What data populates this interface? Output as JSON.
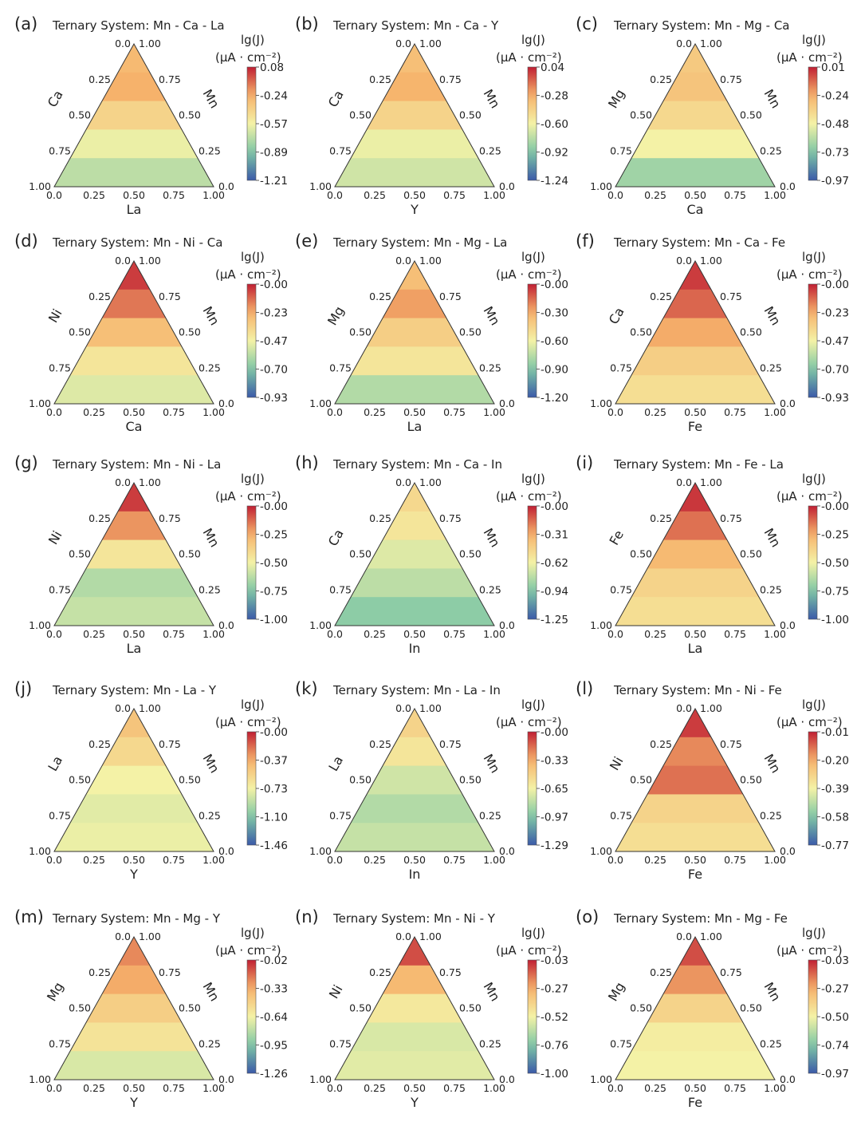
{
  "figure": {
    "colorbar_title_line1": "lg(J)",
    "colorbar_title_line2": "(μA · cm⁻²)",
    "colors": {
      "low": "#3b5aa8",
      "mid_low": "#7fc7a6",
      "mid": "#f4f2a6",
      "mid_high": "#f6b26b",
      "high": "#c01f33"
    }
  },
  "chart_data": [
    {
      "type": "ternary-contour",
      "panel": "(a)",
      "title": "Ternary System: Mn - Ca - La",
      "left_axis": "Ca",
      "right_axis": "Mn",
      "bottom_axis": "La",
      "left_ticks": [
        "0.0",
        "0.25",
        "0.50",
        "0.75",
        "1.00"
      ],
      "right_ticks": [
        "1.00",
        "0.75",
        "0.50",
        "0.25",
        "0.0"
      ],
      "bottom_ticks": [
        "0.0",
        "0.25",
        "0.50",
        "0.75",
        "1.00"
      ],
      "colorbar_ticks": [
        "0.08",
        "-0.24",
        "-0.57",
        "-0.89",
        "-1.21"
      ],
      "colorbar_range": [
        -1.21,
        0.08
      ],
      "bands": [
        {
          "level": 0.72,
          "mid": 0.72
        },
        {
          "level": 0.75,
          "mid": 0.55
        },
        {
          "level": 0.62,
          "mid": 0.42
        },
        {
          "level": 0.48,
          "mid": 0.22
        },
        {
          "level": 0.38,
          "mid": 0.08
        }
      ]
    },
    {
      "type": "ternary-contour",
      "panel": "(b)",
      "title": "Ternary System: Mn - Ca - Y",
      "left_axis": "Ca",
      "right_axis": "Mn",
      "bottom_axis": "Y",
      "left_ticks": [
        "0.0",
        "0.25",
        "0.50",
        "0.75",
        "1.00"
      ],
      "right_ticks": [
        "1.00",
        "0.75",
        "0.50",
        "0.25",
        "0.0"
      ],
      "bottom_ticks": [
        "0.0",
        "0.25",
        "0.50",
        "0.75",
        "1.00"
      ],
      "colorbar_ticks": [
        "0.04",
        "-0.28",
        "-0.60",
        "-0.92",
        "-1.24"
      ],
      "colorbar_range": [
        -1.24,
        0.04
      ],
      "bands": [
        {
          "level": 0.7
        },
        {
          "level": 0.74
        },
        {
          "level": 0.62
        },
        {
          "level": 0.48
        },
        {
          "level": 0.42
        }
      ]
    },
    {
      "type": "ternary-contour",
      "panel": "(c)",
      "title": "Ternary System: Mn - Mg - Ca",
      "left_axis": "Mg",
      "right_axis": "Mn",
      "bottom_axis": "Ca",
      "left_ticks": [
        "0.0",
        "0.25",
        "0.50",
        "0.75",
        "1.00"
      ],
      "right_ticks": [
        "1.00",
        "0.75",
        "0.50",
        "0.25",
        "0.0"
      ],
      "bottom_ticks": [
        "0.0",
        "0.25",
        "0.50",
        "0.75",
        "1.00"
      ],
      "colorbar_ticks": [
        "0.01",
        "-0.24",
        "-0.48",
        "-0.73",
        "-0.97"
      ],
      "colorbar_range": [
        -0.97,
        0.01
      ],
      "bands": [
        {
          "level": 0.66
        },
        {
          "level": 0.68
        },
        {
          "level": 0.6
        },
        {
          "level": 0.5
        },
        {
          "level": 0.32
        }
      ]
    },
    {
      "type": "ternary-contour",
      "panel": "(d)",
      "title": "Ternary System: Mn - Ni - Ca",
      "left_axis": "Ni",
      "right_axis": "Mn",
      "bottom_axis": "Ca",
      "left_ticks": [
        "0.0",
        "0.25",
        "0.50",
        "0.75",
        "1.00"
      ],
      "right_ticks": [
        "1.00",
        "0.75",
        "0.50",
        "0.25",
        "0.0"
      ],
      "bottom_ticks": [
        "0.0",
        "0.25",
        "0.50",
        "0.75",
        "1.00"
      ],
      "colorbar_ticks": [
        "-0.00",
        "-0.23",
        "-0.47",
        "-0.70",
        "-0.93"
      ],
      "colorbar_range": [
        -0.93,
        0.0
      ],
      "bands": [
        {
          "level": 0.95
        },
        {
          "level": 0.85
        },
        {
          "level": 0.7
        },
        {
          "level": 0.55
        },
        {
          "level": 0.45
        }
      ]
    },
    {
      "type": "ternary-contour",
      "panel": "(e)",
      "title": "Ternary System: Mn - Mg - La",
      "left_axis": "Mg",
      "right_axis": "Mn",
      "bottom_axis": "La",
      "left_ticks": [
        "0.0",
        "0.25",
        "0.50",
        "0.75",
        "1.00"
      ],
      "right_ticks": [
        "1.00",
        "0.75",
        "0.50",
        "0.25",
        "0.0"
      ],
      "bottom_ticks": [
        "0.0",
        "0.25",
        "0.50",
        "0.75",
        "1.00"
      ],
      "colorbar_ticks": [
        "-0.00",
        "-0.30",
        "-0.60",
        "-0.90",
        "-1.20"
      ],
      "colorbar_range": [
        -1.2,
        0.0
      ],
      "bands": [
        {
          "level": 0.7
        },
        {
          "level": 0.78
        },
        {
          "level": 0.64
        },
        {
          "level": 0.55
        },
        {
          "level": 0.36
        }
      ]
    },
    {
      "type": "ternary-contour",
      "panel": "(f)",
      "title": "Ternary System: Mn - Ca - Fe",
      "left_axis": "Ca",
      "right_axis": "Mn",
      "bottom_axis": "Fe",
      "left_ticks": [
        "0.0",
        "0.25",
        "0.50",
        "0.75",
        "1.00"
      ],
      "right_ticks": [
        "1.00",
        "0.75",
        "0.50",
        "0.25",
        "0.0"
      ],
      "bottom_ticks": [
        "0.0",
        "0.25",
        "0.50",
        "0.75",
        "1.00"
      ],
      "colorbar_ticks": [
        "-0.00",
        "-0.23",
        "-0.47",
        "-0.70",
        "-0.93"
      ],
      "colorbar_range": [
        -0.93,
        0.0
      ],
      "bands": [
        {
          "level": 0.95
        },
        {
          "level": 0.88
        },
        {
          "level": 0.76
        },
        {
          "level": 0.64
        },
        {
          "level": 0.58
        }
      ]
    },
    {
      "type": "ternary-contour",
      "panel": "(g)",
      "title": "Ternary System: Mn - Ni - La",
      "left_axis": "Ni",
      "right_axis": "Mn",
      "bottom_axis": "La",
      "left_ticks": [
        "0.0",
        "0.25",
        "0.50",
        "0.75",
        "1.00"
      ],
      "right_ticks": [
        "1.00",
        "0.75",
        "0.50",
        "0.25",
        "0.0"
      ],
      "bottom_ticks": [
        "0.0",
        "0.25",
        "0.50",
        "0.75",
        "1.00"
      ],
      "colorbar_ticks": [
        "-0.00",
        "-0.25",
        "-0.50",
        "-0.75",
        "-1.00"
      ],
      "colorbar_range": [
        -1.0,
        0.0
      ],
      "bands": [
        {
          "level": 0.95
        },
        {
          "level": 0.8
        },
        {
          "level": 0.55
        },
        {
          "level": 0.36
        },
        {
          "level": 0.4
        }
      ]
    },
    {
      "type": "ternary-contour",
      "panel": "(h)",
      "title": "Ternary System: Mn - Ca - In",
      "left_axis": "Ca",
      "right_axis": "Mn",
      "bottom_axis": "In",
      "left_ticks": [
        "0.0",
        "0.25",
        "0.50",
        "0.75",
        "1.00"
      ],
      "right_ticks": [
        "1.00",
        "0.75",
        "0.50",
        "0.25",
        "0.0"
      ],
      "bottom_ticks": [
        "0.0",
        "0.25",
        "0.50",
        "0.75",
        "1.00"
      ],
      "colorbar_ticks": [
        "-0.00",
        "-0.31",
        "-0.62",
        "-0.94",
        "-1.25"
      ],
      "colorbar_range": [
        -1.25,
        0.0
      ],
      "bands": [
        {
          "level": 0.6
        },
        {
          "level": 0.55
        },
        {
          "level": 0.45
        },
        {
          "level": 0.38
        },
        {
          "level": 0.28
        }
      ]
    },
    {
      "type": "ternary-contour",
      "panel": "(i)",
      "title": "Ternary System: Mn - Fe - La",
      "left_axis": "Fe",
      "right_axis": "Mn",
      "bottom_axis": "La",
      "left_ticks": [
        "0.0",
        "0.25",
        "0.50",
        "0.75",
        "1.00"
      ],
      "right_ticks": [
        "1.00",
        "0.75",
        "0.50",
        "0.25",
        "0.0"
      ],
      "bottom_ticks": [
        "0.0",
        "0.25",
        "0.50",
        "0.75",
        "1.00"
      ],
      "colorbar_ticks": [
        "-0.00",
        "-0.25",
        "-0.50",
        "-0.75",
        "-1.00"
      ],
      "colorbar_range": [
        -1.0,
        0.0
      ],
      "bands": [
        {
          "level": 0.96
        },
        {
          "level": 0.86
        },
        {
          "level": 0.72
        },
        {
          "level": 0.62
        },
        {
          "level": 0.58
        }
      ]
    },
    {
      "type": "ternary-contour",
      "panel": "(j)",
      "title": "Ternary System: Mn - La - Y",
      "left_axis": "La",
      "right_axis": "Mn",
      "bottom_axis": "Y",
      "left_ticks": [
        "0.0",
        "0.25",
        "0.50",
        "0.75",
        "1.00"
      ],
      "right_ticks": [
        "1.00",
        "0.75",
        "0.50",
        "0.25",
        "0.0"
      ],
      "bottom_ticks": [
        "0.0",
        "0.25",
        "0.50",
        "0.75",
        "1.00"
      ],
      "colorbar_ticks": [
        "-0.00",
        "-0.37",
        "-0.73",
        "-1.10",
        "-1.46"
      ],
      "colorbar_range": [
        -1.46,
        0.0
      ],
      "bands": [
        {
          "level": 0.68
        },
        {
          "level": 0.6
        },
        {
          "level": 0.5
        },
        {
          "level": 0.46
        },
        {
          "level": 0.48
        }
      ]
    },
    {
      "type": "ternary-contour",
      "panel": "(k)",
      "title": "Ternary System: Mn - La - In",
      "left_axis": "La",
      "right_axis": "Mn",
      "bottom_axis": "In",
      "left_ticks": [
        "0.0",
        "0.25",
        "0.50",
        "0.75",
        "1.00"
      ],
      "right_ticks": [
        "1.00",
        "0.75",
        "0.50",
        "0.25",
        "0.0"
      ],
      "bottom_ticks": [
        "0.0",
        "0.25",
        "0.50",
        "0.75",
        "1.00"
      ],
      "colorbar_ticks": [
        "-0.00",
        "-0.33",
        "-0.65",
        "-0.97",
        "-1.29"
      ],
      "colorbar_range": [
        -1.29,
        0.0
      ],
      "bands": [
        {
          "level": 0.62
        },
        {
          "level": 0.55
        },
        {
          "level": 0.42
        },
        {
          "level": 0.36
        },
        {
          "level": 0.4
        }
      ]
    },
    {
      "type": "ternary-contour",
      "panel": "(l)",
      "title": "Ternary System: Mn - Ni - Fe",
      "left_axis": "Ni",
      "right_axis": "Mn",
      "bottom_axis": "Fe",
      "left_ticks": [
        "0.0",
        "0.25",
        "0.50",
        "0.75",
        "1.00"
      ],
      "right_ticks": [
        "1.00",
        "0.75",
        "0.50",
        "0.25",
        "0.0"
      ],
      "bottom_ticks": [
        "0.0",
        "0.25",
        "0.50",
        "0.75",
        "1.00"
      ],
      "colorbar_ticks": [
        "-0.01",
        "-0.20",
        "-0.39",
        "-0.58",
        "-0.77"
      ],
      "colorbar_range": [
        -0.77,
        -0.01
      ],
      "bands": [
        {
          "level": 0.95
        },
        {
          "level": 0.82
        },
        {
          "level": 0.86
        },
        {
          "level": 0.62
        },
        {
          "level": 0.58
        }
      ]
    },
    {
      "type": "ternary-contour",
      "panel": "(m)",
      "title": "Ternary System: Mn - Mg - Y",
      "left_axis": "Mg",
      "right_axis": "Mn",
      "bottom_axis": "Y",
      "left_ticks": [
        "0.0",
        "0.25",
        "0.50",
        "0.75",
        "1.00"
      ],
      "right_ticks": [
        "1.00",
        "0.75",
        "0.50",
        "0.25",
        "0.0"
      ],
      "bottom_ticks": [
        "0.0",
        "0.25",
        "0.50",
        "0.75",
        "1.00"
      ],
      "colorbar_ticks": [
        "-0.02",
        "-0.33",
        "-0.64",
        "-0.95",
        "-1.26"
      ],
      "colorbar_range": [
        -1.26,
        -0.02
      ],
      "bands": [
        {
          "level": 0.82
        },
        {
          "level": 0.76
        },
        {
          "level": 0.64
        },
        {
          "level": 0.56
        },
        {
          "level": 0.44
        }
      ]
    },
    {
      "type": "ternary-contour",
      "panel": "(n)",
      "title": "Ternary System: Mn - Ni - Y",
      "left_axis": "Ni",
      "right_axis": "Mn",
      "bottom_axis": "Y",
      "left_ticks": [
        "0.0",
        "0.25",
        "0.50",
        "0.75",
        "1.00"
      ],
      "right_ticks": [
        "1.00",
        "0.75",
        "0.50",
        "0.25",
        "0.0"
      ],
      "bottom_ticks": [
        "0.0",
        "0.25",
        "0.50",
        "0.75",
        "1.00"
      ],
      "colorbar_ticks": [
        "-0.03",
        "-0.27",
        "-0.52",
        "-0.76",
        "-1.00"
      ],
      "colorbar_range": [
        -1.0,
        -0.03
      ],
      "bands": [
        {
          "level": 0.92
        },
        {
          "level": 0.72
        },
        {
          "level": 0.54
        },
        {
          "level": 0.44
        },
        {
          "level": 0.46
        }
      ]
    },
    {
      "type": "ternary-contour",
      "panel": "(o)",
      "title": "Ternary System: Mn - Mg - Fe",
      "left_axis": "Mg",
      "right_axis": "Mn",
      "bottom_axis": "Fe",
      "left_ticks": [
        "0.0",
        "0.25",
        "0.50",
        "0.75",
        "1.00"
      ],
      "right_ticks": [
        "1.00",
        "0.75",
        "0.50",
        "0.25",
        "0.0"
      ],
      "bottom_ticks": [
        "0.0",
        "0.25",
        "0.50",
        "0.75",
        "1.00"
      ],
      "colorbar_ticks": [
        "-0.03",
        "-0.27",
        "-0.50",
        "-0.74",
        "-0.97"
      ],
      "colorbar_range": [
        -0.97,
        -0.03
      ],
      "bands": [
        {
          "level": 0.92
        },
        {
          "level": 0.8
        },
        {
          "level": 0.62
        },
        {
          "level": 0.52
        },
        {
          "level": 0.5
        }
      ]
    }
  ]
}
